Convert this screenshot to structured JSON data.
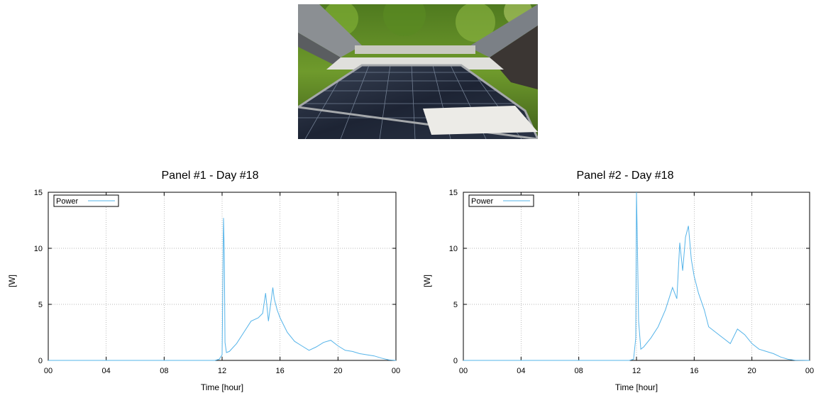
{
  "photo": {
    "subject": "solar-panel-photo"
  },
  "colors": {
    "series": "#56b4e9",
    "grid": "#a0a0a0",
    "frame": "#000000"
  },
  "chart_data": [
    {
      "type": "line",
      "title": "Panel #1 - Day #18",
      "xlabel": "Time [hour]",
      "ylabel": "[W]",
      "xlim": [
        0,
        24
      ],
      "ylim": [
        0,
        15
      ],
      "xticks": [
        "00",
        "04",
        "08",
        "12",
        "16",
        "20",
        "00"
      ],
      "yticks": [
        "0",
        "5",
        "10",
        "15"
      ],
      "grid": true,
      "legend_position": "top-left",
      "series": [
        {
          "name": "Power",
          "x": [
            0,
            11.5,
            11.8,
            12.0,
            12.05,
            12.1,
            12.15,
            12.2,
            12.3,
            12.5,
            13.0,
            13.5,
            14.0,
            14.5,
            14.8,
            15.0,
            15.2,
            15.5,
            15.6,
            15.8,
            16.0,
            16.5,
            17.0,
            17.5,
            18.0,
            18.5,
            19.0,
            19.5,
            20.0,
            20.5,
            21.0,
            21.5,
            22.0,
            22.5,
            23.0,
            23.5,
            24
          ],
          "y": [
            0,
            0,
            0.1,
            0.5,
            6.5,
            12.7,
            9.5,
            1.6,
            0.7,
            0.8,
            1.5,
            2.5,
            3.5,
            3.8,
            4.2,
            6.0,
            3.5,
            6.5,
            5.5,
            4.5,
            3.8,
            2.5,
            1.7,
            1.3,
            0.9,
            1.2,
            1.6,
            1.8,
            1.3,
            0.9,
            0.8,
            0.6,
            0.5,
            0.4,
            0.2,
            0.05,
            0
          ]
        }
      ]
    },
    {
      "type": "line",
      "title": "Panel #2 - Day #18",
      "xlabel": "Time [hour]",
      "ylabel": "[W]",
      "xlim": [
        0,
        24
      ],
      "ylim": [
        0,
        15
      ],
      "xticks": [
        "00",
        "04",
        "08",
        "12",
        "16",
        "20",
        "00"
      ],
      "yticks": [
        "0",
        "5",
        "10",
        "15"
      ],
      "grid": true,
      "legend_position": "top-left",
      "series": [
        {
          "name": "Power",
          "x": [
            0,
            11.5,
            11.8,
            11.95,
            12.0,
            12.05,
            12.15,
            12.3,
            12.5,
            13.0,
            13.5,
            14.0,
            14.5,
            14.8,
            15.0,
            15.2,
            15.4,
            15.6,
            15.8,
            16.0,
            16.3,
            16.7,
            17.0,
            17.5,
            18.0,
            18.5,
            19.0,
            19.5,
            20.0,
            20.5,
            21.0,
            21.5,
            22.0,
            22.5,
            23.0,
            24
          ],
          "y": [
            0,
            0,
            0.1,
            2.0,
            15.0,
            11.5,
            3.5,
            1.0,
            1.2,
            2.0,
            3.0,
            4.5,
            6.5,
            5.5,
            10.5,
            8.0,
            11.0,
            12.0,
            9.0,
            7.5,
            6.0,
            4.5,
            3.0,
            2.5,
            2.0,
            1.5,
            2.8,
            2.3,
            1.5,
            1.0,
            0.8,
            0.6,
            0.3,
            0.1,
            0.02,
            0
          ]
        }
      ]
    }
  ]
}
